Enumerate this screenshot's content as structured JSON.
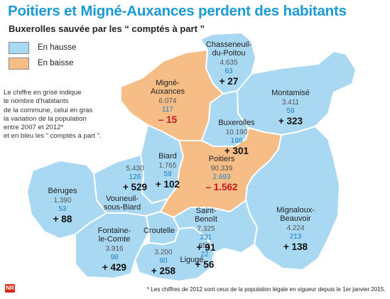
{
  "title": "Poitiers et Migné-Auxances perdent des habitants",
  "subtitle": "Buxerolles sauvée par les “ comptés à part ”",
  "legend": [
    {
      "label": "En hausse",
      "color": "#a9d8f3"
    },
    {
      "label": "En baisse",
      "color": "#f6bd86"
    }
  ],
  "note": [
    "Le chiffre en grisé indique",
    "le nombre d'habitants",
    "de la commune, celui en gras",
    "la variation de la population",
    "entre 2007 et 2012*",
    "et en bleu les “ comptés à part ”."
  ],
  "footnote": "* Les chiffres de 2012 sont ceux de la population légale en vigueur depuis le 1er janvier 2015.",
  "logo_text": "NR",
  "communes": [
    {
      "id": "chasseneuil",
      "name": [
        "Chasseneuil-",
        "du-Poitou"
      ],
      "population": "4.635",
      "compted": "63",
      "variation": "+ 27",
      "trend": "up"
    },
    {
      "id": "montamise",
      "name": [
        "Montamisé"
      ],
      "population": "3.411",
      "compted": "59",
      "variation": "+ 323",
      "trend": "up"
    },
    {
      "id": "migne",
      "name": [
        "Migné-",
        "Auxances"
      ],
      "population": "6.074",
      "compted": "117",
      "variation": "– 15",
      "trend": "down"
    },
    {
      "id": "buxerolles",
      "name": [
        "Buxerolles"
      ],
      "population": "10.190",
      "compted": "198",
      "variation": "+ 301",
      "trend": "up"
    },
    {
      "id": "poitiers",
      "name": [
        "Poitiers"
      ],
      "population": "90.339",
      "compted": "2.693",
      "variation": "– 1.562",
      "trend": "down"
    },
    {
      "id": "biard",
      "name": [
        "Biard"
      ],
      "population": "1.765",
      "compted": "59",
      "variation": "+ 102",
      "trend": "up"
    },
    {
      "id": "vouneuil",
      "name": [
        "Vouneuil-",
        "sous-Biard"
      ],
      "population": "5.430",
      "compted": "126",
      "variation": "+ 529",
      "trend": "up"
    },
    {
      "id": "beruges",
      "name": [
        "Béruges"
      ],
      "population": "1.390",
      "compted": "53",
      "variation": "+ 88",
      "trend": "up"
    },
    {
      "id": "fontaine",
      "name": [
        "Fontaine-",
        "le-Comte"
      ],
      "population": "3.916",
      "compted": "98",
      "variation": "+ 429",
      "trend": "up"
    },
    {
      "id": "croutelle",
      "name": [
        "Croutelle"
      ],
      "population": "852",
      "compted": "22",
      "variation": "+ 56",
      "trend": "up"
    },
    {
      "id": "liguge",
      "name": [
        "Ligugé"
      ],
      "population": "3.200",
      "compted": "60",
      "variation": "+ 258",
      "trend": "up"
    },
    {
      "id": "stbenoit",
      "name": [
        "Saint-",
        "Benoît"
      ],
      "population": "7.325",
      "compted": "231",
      "variation": "+ 91",
      "trend": "up"
    },
    {
      "id": "mignaloux",
      "name": [
        "Mignaloux-",
        "Beauvoir"
      ],
      "population": "4.224",
      "compted": "213",
      "variation": "+ 138",
      "trend": "up"
    }
  ],
  "colors": {
    "title": "#1a9ad6",
    "population_text": "#555555",
    "compted_text": "#1a7fc4",
    "decrease_text": "#c8141e",
    "border": "#ffffff"
  }
}
